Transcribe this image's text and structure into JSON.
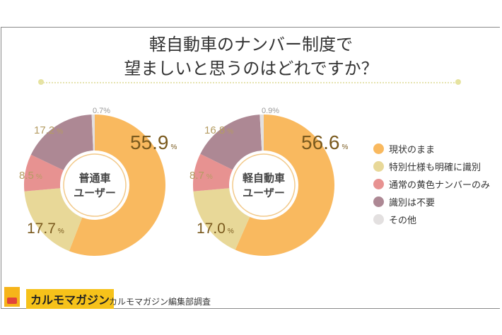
{
  "title_lines": [
    "軽自動車のナンバー制度で",
    "望ましいと思うのはどれですか？"
  ],
  "chart_data": [
    {
      "type": "pie",
      "center_label": [
        "普通車",
        "ユーザー"
      ],
      "categories": [
        "現状のまま",
        "特別仕様も明確に識別",
        "通常の黄色ナンバーのみ",
        "識別は不要",
        "その他"
      ],
      "values": [
        55.9,
        17.7,
        8.5,
        17.2,
        0.7
      ],
      "labels": [
        "55.9",
        "17.7",
        "8.5",
        "17.2",
        "0.7"
      ]
    },
    {
      "type": "pie",
      "center_label": [
        "軽自動車",
        "ユーザー"
      ],
      "categories": [
        "現状のまま",
        "特別仕様も明確に識別",
        "通常の黄色ナンバーのみ",
        "識別は不要",
        "その他"
      ],
      "values": [
        56.6,
        17.0,
        8.7,
        16.8,
        0.9
      ],
      "labels": [
        "56.6",
        "17.0",
        "8.7",
        "16.8",
        "0.9"
      ]
    }
  ],
  "percent_sign": "%",
  "colors": [
    "#f9b95f",
    "#e8d898",
    "#e79291",
    "#ad8894",
    "#e3e0e0"
  ],
  "legend": [
    "現状のまま",
    "特別仕様も明確に識別",
    "通常の黄色ナンバーのみ",
    "識別は不要",
    "その他"
  ],
  "footer": {
    "brand": "カルモマガジン",
    "credit": "カルモマガジン編集部調査"
  }
}
